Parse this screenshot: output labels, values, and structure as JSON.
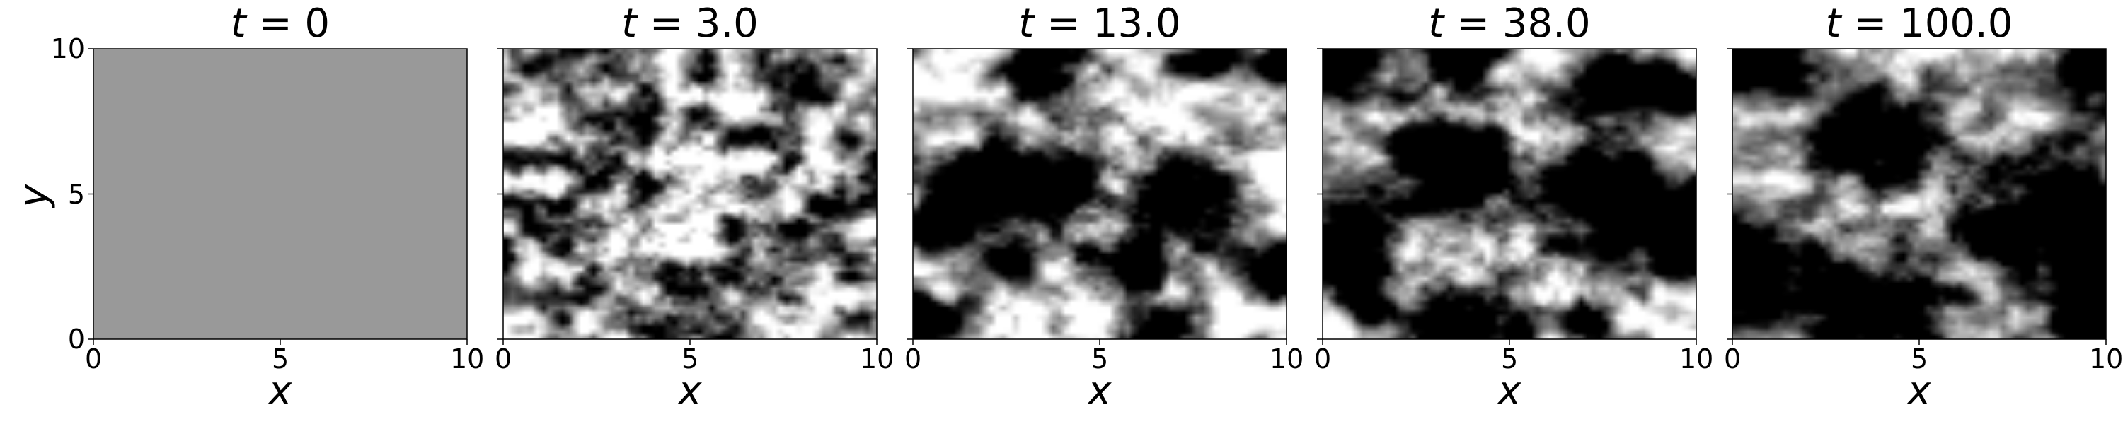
{
  "chart_data": {
    "type": "heatmap",
    "ylabel": "y",
    "colormap": "gray",
    "x_ticks": [
      "0",
      "5",
      "10"
    ],
    "y_ticks": [
      "0",
      "5",
      "10"
    ],
    "xlim": [
      0,
      10
    ],
    "ylim": [
      0,
      10
    ],
    "panels": [
      {
        "title_var": "t",
        "title_value": "0",
        "xlabel": "x",
        "uniform_value": 0.6,
        "blobs": []
      },
      {
        "title_var": "t",
        "title_value": "3.0",
        "xlabel": "x",
        "noise_scale": 0.55,
        "blobs": []
      },
      {
        "title_var": "t",
        "title_value": "13.0",
        "xlabel": "x",
        "noise_scale": 0.9,
        "blobs": [
          [
            0.3,
            0.6,
            0.7
          ],
          [
            2.0,
            5.5,
            0.9
          ],
          [
            3.6,
            9.3,
            0.7
          ],
          [
            4.0,
            5.5,
            0.8
          ],
          [
            5.8,
            2.5,
            0.8
          ],
          [
            6.5,
            0.3,
            0.6
          ],
          [
            7.5,
            5.0,
            0.9
          ],
          [
            9.6,
            2.5,
            0.6
          ],
          [
            9.9,
            9.6,
            0.6
          ],
          [
            8.0,
            9.8,
            0.6
          ],
          [
            2.7,
            2.5,
            0.5
          ],
          [
            0.5,
            4.0,
            0.6
          ]
        ]
      },
      {
        "title_var": "t",
        "title_value": "38.0",
        "xlabel": "x",
        "noise_scale": 0.9,
        "blobs": [
          [
            0.5,
            9.5,
            0.9
          ],
          [
            0.6,
            3.2,
            1.0
          ],
          [
            3.3,
            6.1,
            1.2
          ],
          [
            7.6,
            5.0,
            1.3
          ],
          [
            9.9,
            3.5,
            1.0
          ],
          [
            7.8,
            8.8,
            0.9
          ],
          [
            4.0,
            0.4,
            1.1
          ],
          [
            3.9,
            9.9,
            0.7
          ],
          [
            7.2,
            0.4,
            0.5
          ],
          [
            9.7,
            8.5,
            0.6
          ],
          [
            1.2,
            1.2,
            0.5
          ]
        ]
      },
      {
        "title_var": "t",
        "title_value": "100.0",
        "xlabel": "x",
        "noise_scale": 0.8,
        "blobs": [
          [
            0.2,
            9.6,
            1.1
          ],
          [
            0.5,
            2.6,
            1.2
          ],
          [
            3.7,
            6.9,
            1.2
          ],
          [
            3.9,
            0.8,
            1.3
          ],
          [
            8.7,
            4.3,
            1.6
          ],
          [
            9.9,
            9.5,
            1.0
          ],
          [
            10.0,
            1.8,
            0.9
          ],
          [
            9.3,
            0.6,
            0.6
          ],
          [
            7.2,
            3.5,
            0.5
          ]
        ]
      }
    ]
  }
}
